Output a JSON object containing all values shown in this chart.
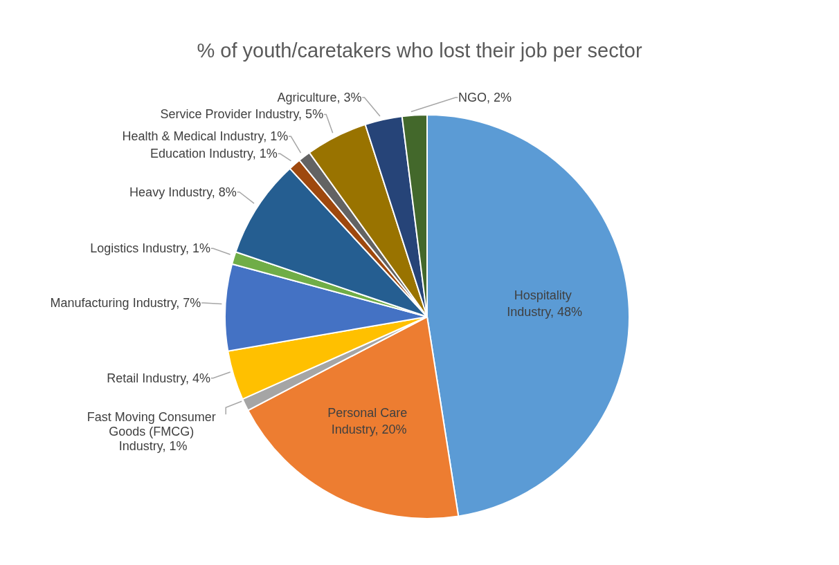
{
  "chart_data": {
    "type": "pie",
    "title": "% of youth/caretakers who lost their job per sector",
    "categories": [
      "Hospitality Industry",
      "Personal Care Industry",
      "Fast Moving Consumer Goods (FMCG) Industry",
      "Retail Industry",
      "Manufacturing Industry",
      "Logistics Industry",
      "Heavy Industry",
      "Education Industry",
      "Health & Medical Industry",
      "Service Provider Industry",
      "Agriculture",
      "NGO"
    ],
    "values": [
      48,
      20,
      1,
      4,
      7,
      1,
      8,
      1,
      1,
      5,
      3,
      2
    ],
    "value_labels": [
      "48%",
      "20%",
      "1%",
      "4%",
      "7%",
      "1%",
      "8%",
      "1%",
      "1%",
      "5%",
      "3%",
      "2%"
    ],
    "colors": [
      "#5b9bd5",
      "#ed7d31",
      "#a5a5a5",
      "#ffc000",
      "#4472c4",
      "#70ad47",
      "#255e91",
      "#9e480e",
      "#636363",
      "#997300",
      "#264478",
      "#43682b"
    ]
  }
}
